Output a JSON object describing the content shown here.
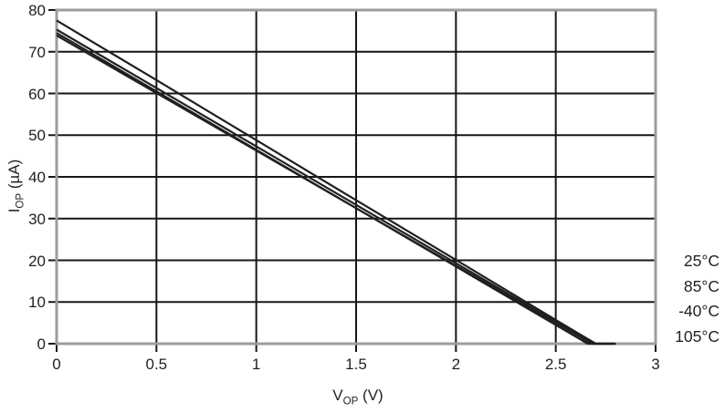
{
  "figure": {
    "background": "#ffffff"
  },
  "chart_data": {
    "type": "line",
    "title": "",
    "xlabel": {
      "base": "V",
      "sub": "OP",
      "rest": " (V)"
    },
    "ylabel": {
      "base": "I",
      "sub": "OP",
      "rest": " (µA)"
    },
    "xlim": [
      0,
      3
    ],
    "ylim": [
      0,
      80
    ],
    "xticks": [
      0,
      0.5,
      1,
      1.5,
      2,
      2.5,
      3
    ],
    "xtick_labels": [
      "0",
      "0.5",
      "1",
      "1.5",
      "2",
      "2.5",
      "3"
    ],
    "yticks": [
      0,
      10,
      20,
      30,
      40,
      50,
      60,
      70,
      80
    ],
    "ytick_labels": [
      "0",
      "10",
      "20",
      "30",
      "40",
      "50",
      "60",
      "70",
      "80"
    ],
    "grid": true,
    "legend_position": "right-outside",
    "legend": [
      "25°C",
      "85°C",
      "-40°C",
      "105°C"
    ],
    "series": [
      {
        "name": "25°C",
        "x": [
          0,
          0.5,
          1.0,
          1.5,
          2.0,
          2.5,
          2.7,
          2.8
        ],
        "y": [
          77.5,
          63.2,
          48.8,
          34.4,
          20.1,
          5.7,
          0,
          0
        ]
      },
      {
        "name": "85°C",
        "x": [
          0,
          0.5,
          1.0,
          1.5,
          2.0,
          2.5,
          2.69,
          2.8
        ],
        "y": [
          75.3,
          61.3,
          47.3,
          33.3,
          19.3,
          5.3,
          0,
          0
        ]
      },
      {
        "name": "-40°C",
        "x": [
          0,
          0.5,
          1.0,
          1.5,
          2.0,
          2.5,
          2.66,
          2.78
        ],
        "y": [
          74.5,
          60.5,
          46.5,
          32.5,
          18.5,
          4.5,
          0,
          0
        ]
      },
      {
        "name": "105°C",
        "x": [
          0,
          0.5,
          1.0,
          1.5,
          2.0,
          2.5,
          2.68,
          2.8
        ],
        "y": [
          73.9,
          60.1,
          46.3,
          32.5,
          18.7,
          5.0,
          0,
          0
        ]
      }
    ],
    "colors": {
      "line": "#231f20",
      "grid": "#161616",
      "border": "#9a9ca0",
      "text": "#231f20"
    }
  }
}
